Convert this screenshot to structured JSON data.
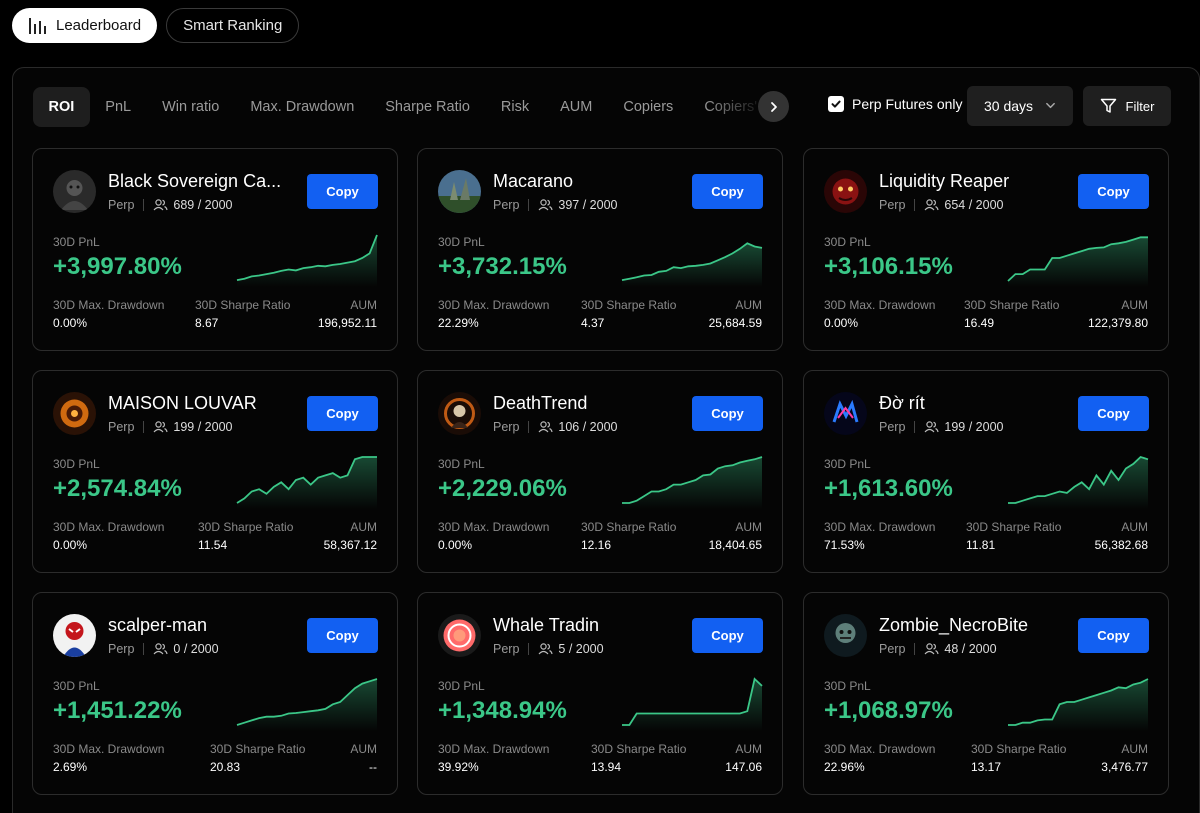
{
  "top_tabs": [
    {
      "label": "Leaderboard",
      "icon": "bar-chart-icon",
      "active": true
    },
    {
      "label": "Smart Ranking",
      "active": false
    }
  ],
  "sort_tabs": [
    "ROI",
    "PnL",
    "Win ratio",
    "Max. Drawdown",
    "Sharpe Ratio",
    "Risk",
    "AUM",
    "Copiers",
    "Copiers'"
  ],
  "filters": {
    "perp_only_label": "Perp Futures only",
    "perp_only_checked": true,
    "period": "30 days",
    "filter_label": "Filter"
  },
  "labels": {
    "copy": "Copy",
    "pnl": "30D PnL",
    "drawdown": "30D Max. Drawdown",
    "sharpe": "30D Sharpe Ratio",
    "aum": "AUM"
  },
  "colors": {
    "accent_blue": "#1260f2",
    "pnl_green": "#3bc788",
    "card_border": "#2c2c2c"
  },
  "traders": [
    {
      "name": "Black Sovereign Ca...",
      "type": "Perp",
      "copiers": "689 / 2000",
      "pnl": "+3,997.80%",
      "drawdown": "0.00%",
      "sharpe": "8.67",
      "aum": "196,952.11",
      "curve": [
        0.02,
        0.05,
        0.1,
        0.12,
        0.15,
        0.18,
        0.22,
        0.25,
        0.23,
        0.28,
        0.3,
        0.33,
        0.32,
        0.35,
        0.37,
        0.4,
        0.43,
        0.5,
        0.6,
        1.0
      ]
    },
    {
      "name": "Macarano",
      "type": "Perp",
      "copiers": "397 / 2000",
      "pnl": "+3,732.15%",
      "drawdown": "22.29%",
      "sharpe": "4.37",
      "aum": "25,684.59",
      "curve": [
        0.02,
        0.05,
        0.08,
        0.12,
        0.13,
        0.2,
        0.22,
        0.3,
        0.28,
        0.32,
        0.33,
        0.35,
        0.38,
        0.45,
        0.52,
        0.6,
        0.7,
        0.82,
        0.75,
        0.72
      ]
    },
    {
      "name": "Liquidity Reaper",
      "type": "Perp",
      "copiers": "654 / 2000",
      "pnl": "+3,106.15%",
      "drawdown": "0.00%",
      "sharpe": "16.49",
      "aum": "122,379.80",
      "curve": [
        0.0,
        0.15,
        0.15,
        0.25,
        0.25,
        0.25,
        0.5,
        0.5,
        0.55,
        0.6,
        0.65,
        0.7,
        0.72,
        0.73,
        0.8,
        0.82,
        0.85,
        0.9,
        0.95,
        0.95
      ]
    },
    {
      "name": "MAISON LOUVAR",
      "type": "Perp",
      "copiers": "199 / 2000",
      "pnl": "+2,574.84%",
      "drawdown": "0.00%",
      "sharpe": "11.54",
      "aum": "58,367.12",
      "curve": [
        0.0,
        0.1,
        0.25,
        0.3,
        0.2,
        0.35,
        0.45,
        0.3,
        0.5,
        0.55,
        0.4,
        0.55,
        0.6,
        0.65,
        0.55,
        0.6,
        0.95,
        1.0,
        1.0,
        1.0
      ]
    },
    {
      "name": "DeathTrend",
      "type": "Perp",
      "copiers": "106 / 2000",
      "pnl": "+2,229.06%",
      "drawdown": "0.00%",
      "sharpe": "12.16",
      "aum": "18,404.65",
      "curve": [
        0.0,
        0.0,
        0.05,
        0.15,
        0.25,
        0.25,
        0.3,
        0.4,
        0.4,
        0.45,
        0.5,
        0.6,
        0.62,
        0.75,
        0.8,
        0.82,
        0.88,
        0.92,
        0.95,
        1.0
      ]
    },
    {
      "name": "Đờ rít",
      "type": "Perp",
      "copiers": "199 / 2000",
      "pnl": "+1,613.60%",
      "drawdown": "71.53%",
      "sharpe": "11.81",
      "aum": "56,382.68",
      "curve": [
        0.0,
        0.0,
        0.05,
        0.1,
        0.15,
        0.15,
        0.2,
        0.25,
        0.22,
        0.35,
        0.45,
        0.3,
        0.6,
        0.4,
        0.7,
        0.5,
        0.75,
        0.85,
        1.0,
        0.95
      ]
    },
    {
      "name": "scalper-man",
      "type": "Perp",
      "copiers": "0 / 2000",
      "pnl": "+1,451.22%",
      "drawdown": "2.69%",
      "sharpe": "20.83",
      "aum": "--",
      "curve": [
        0.0,
        0.05,
        0.1,
        0.15,
        0.18,
        0.18,
        0.2,
        0.25,
        0.26,
        0.28,
        0.3,
        0.32,
        0.35,
        0.45,
        0.5,
        0.65,
        0.8,
        0.9,
        0.95,
        1.0
      ]
    },
    {
      "name": "Whale Tradin",
      "type": "Perp",
      "copiers": "5 / 2000",
      "pnl": "+1,348.94%",
      "drawdown": "39.92%",
      "sharpe": "13.94",
      "aum": "147.06",
      "curve": [
        0.0,
        0.0,
        0.25,
        0.25,
        0.25,
        0.25,
        0.25,
        0.25,
        0.25,
        0.25,
        0.25,
        0.25,
        0.25,
        0.25,
        0.25,
        0.25,
        0.25,
        0.3,
        1.0,
        0.85
      ]
    },
    {
      "name": "Zombie_NecroBite",
      "type": "Perp",
      "copiers": "48 / 2000",
      "pnl": "+1,068.97%",
      "drawdown": "22.96%",
      "sharpe": "13.17",
      "aum": "3,476.77",
      "curve": [
        0.0,
        0.0,
        0.05,
        0.05,
        0.1,
        0.12,
        0.12,
        0.45,
        0.5,
        0.5,
        0.55,
        0.6,
        0.65,
        0.7,
        0.75,
        0.82,
        0.8,
        0.88,
        0.92,
        1.0
      ]
    }
  ]
}
